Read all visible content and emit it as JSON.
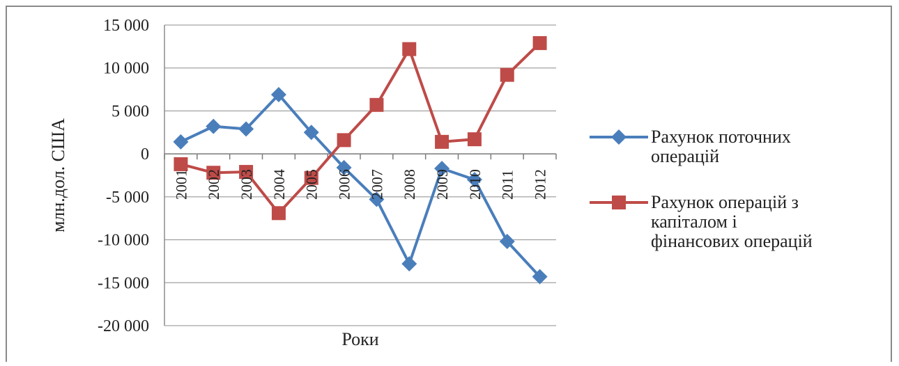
{
  "chart_data": {
    "type": "line",
    "ylabel": "млн.дол. США",
    "xlabel": "Роки",
    "ylim": [
      -20000,
      15000
    ],
    "yticks": [
      15000,
      10000,
      5000,
      0,
      -5000,
      -10000,
      -15000,
      -20000
    ],
    "ytick_labels": [
      "15 000",
      "10 000",
      "5 000",
      "0",
      "-5 000",
      "-10 000",
      "-15 000",
      "-20 000"
    ],
    "categories": [
      "2001",
      "2002",
      "2003",
      "2004",
      "2005",
      "2006",
      "2007",
      "2008",
      "2009",
      "2010",
      "2011",
      "2012"
    ],
    "grid": "horizontal",
    "legend_position": "right",
    "series": [
      {
        "name": "Рахунок поточних операцій",
        "color": "#4a7ebb",
        "marker": "diamond",
        "values": [
          1400,
          3200,
          2900,
          6900,
          2500,
          -1600,
          -5300,
          -12800,
          -1700,
          -3000,
          -10200,
          -14300
        ]
      },
      {
        "name": "Рахунок операцій з капіталом і фінансових операцій",
        "color": "#be4b48",
        "marker": "square",
        "values": [
          -1200,
          -2200,
          -2100,
          -6900,
          -2800,
          1600,
          5700,
          12200,
          1400,
          1700,
          9200,
          12900
        ]
      }
    ]
  }
}
